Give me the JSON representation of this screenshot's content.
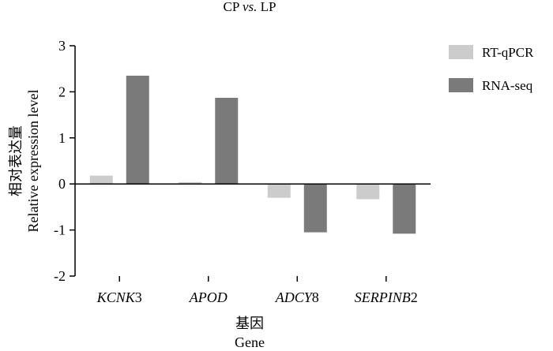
{
  "chart_data": {
    "type": "bar",
    "title_parts": [
      "CP ",
      "vs.",
      " LP"
    ],
    "ylabel_cn": "相对表达量",
    "ylabel_en": "Relative expression level",
    "xlabel_cn": "基因",
    "xlabel_en": "Gene",
    "categories": [
      {
        "italic": "KCNK",
        "plain": "3"
      },
      {
        "italic": "APOD",
        "plain": ""
      },
      {
        "italic": "ADCY",
        "plain": "8"
      },
      {
        "italic": "SERPINB",
        "plain": "2"
      }
    ],
    "series": [
      {
        "name": "RT-qPCR",
        "color": "#cccccc",
        "values": [
          0.18,
          0.04,
          -0.3,
          -0.33
        ]
      },
      {
        "name": "RNA-seq",
        "color": "#7a7a7a",
        "values": [
          2.35,
          1.87,
          -1.05,
          -1.08
        ]
      }
    ],
    "ylim": [
      -2,
      3
    ],
    "yticks": [
      "-2",
      "-1",
      "0",
      "1",
      "2",
      "3"
    ],
    "legend_position": "top-right",
    "grid": false
  }
}
